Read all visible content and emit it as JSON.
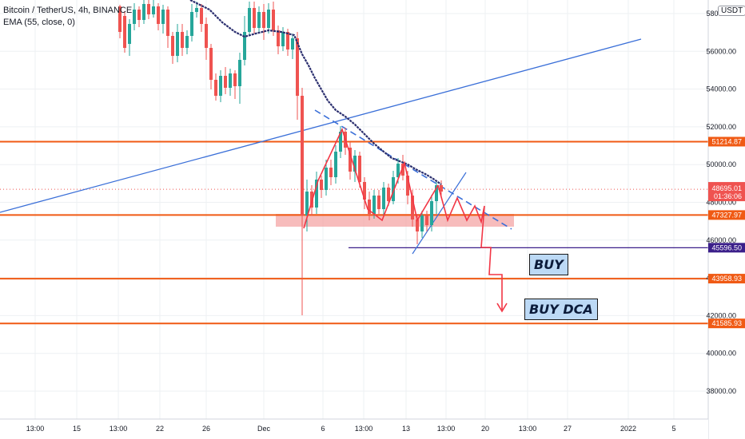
{
  "header": {
    "symbol": "Bitcoin / TetherUS, 4h, BINANCE",
    "indicator": "EMA (55, close, 0)",
    "currency": "USDT"
  },
  "colors": {
    "up": "#26a69a",
    "down": "#ef5350",
    "ema": "#2a2e6e",
    "level": "#f05a14",
    "trend": "#3a6fd8",
    "zone": "#f4a6a6",
    "price_tag_current": "#ef5350",
    "price_tag_purple": "#3b1f8a",
    "drawing_red": "#f23645",
    "grid": "#eef0f3"
  },
  "annotations": {
    "buy": "BUY",
    "buy_dca": "BUY DCA"
  },
  "chart_data": {
    "type": "candlestick",
    "symbol": "BTC/USDT",
    "timeframe": "4h",
    "ylim": [
      36600,
      58800
    ],
    "yticks": [
      38000,
      40000,
      42000,
      44000,
      46000,
      48000,
      50000,
      52000,
      54000,
      56000,
      58000
    ],
    "ytick_labels": [
      "38000.00",
      "40000.00",
      "42000.00",
      "44000.00",
      "46000.00",
      "48000.00",
      "50000.00",
      "52000.00",
      "54000.00",
      "56000.00",
      "58000.00"
    ],
    "xtick_labels": [
      "13:00",
      "15",
      "13:00",
      "22",
      "26",
      "Dec",
      "6",
      "13:00",
      "13",
      "13:00",
      "20",
      "13:00",
      "27",
      "2022",
      "5"
    ],
    "current_price": "48695.01",
    "countdown": "01:36:06",
    "levels": [
      {
        "price": 51214.87,
        "label": "51214.87",
        "kind": "resistance"
      },
      {
        "price": 47327.97,
        "label": "47327.97",
        "kind": "support"
      },
      {
        "price": 45596.5,
        "label": "45596.50",
        "kind": "purple"
      },
      {
        "price": 43958.93,
        "label": "43958.93",
        "kind": "support"
      },
      {
        "price": 41585.93,
        "label": "41585.93",
        "kind": "support"
      }
    ],
    "ema_points": [
      [
        238,
        0
      ],
      [
        262,
        12
      ],
      [
        278,
        28
      ],
      [
        294,
        40
      ],
      [
        306,
        46
      ],
      [
        320,
        42
      ],
      [
        336,
        38
      ],
      [
        352,
        40
      ],
      [
        368,
        44
      ],
      [
        378,
        68
      ],
      [
        386,
        82
      ],
      [
        394,
        98
      ],
      [
        402,
        112
      ],
      [
        410,
        126
      ],
      [
        420,
        138
      ],
      [
        432,
        146
      ],
      [
        444,
        156
      ],
      [
        456,
        168
      ],
      [
        468,
        180
      ],
      [
        480,
        190
      ],
      [
        490,
        198
      ],
      [
        500,
        202
      ],
      [
        510,
        206
      ],
      [
        520,
        212
      ],
      [
        532,
        218
      ],
      [
        542,
        224
      ],
      [
        552,
        231
      ]
    ],
    "candles": [
      [
        150,
        8,
        40,
        6,
        48
      ],
      [
        156,
        20,
        60,
        14,
        66
      ],
      [
        162,
        55,
        30,
        24,
        70
      ],
      [
        168,
        30,
        12,
        4,
        38
      ],
      [
        174,
        12,
        25,
        8,
        34
      ],
      [
        180,
        25,
        5,
        0,
        30
      ],
      [
        186,
        5,
        18,
        0,
        24
      ],
      [
        192,
        18,
        8,
        0,
        22
      ],
      [
        198,
        8,
        30,
        4,
        38
      ],
      [
        204,
        30,
        12,
        6,
        42
      ],
      [
        210,
        12,
        45,
        8,
        60
      ],
      [
        216,
        45,
        70,
        40,
        80
      ],
      [
        222,
        70,
        40,
        30,
        78
      ],
      [
        228,
        40,
        60,
        30,
        70
      ],
      [
        234,
        60,
        45,
        38,
        68
      ],
      [
        240,
        45,
        15,
        5,
        52
      ],
      [
        246,
        15,
        10,
        2,
        22
      ],
      [
        252,
        10,
        30,
        5,
        40
      ],
      [
        258,
        30,
        60,
        22,
        75
      ],
      [
        264,
        60,
        100,
        55,
        112
      ],
      [
        270,
        100,
        120,
        92,
        126
      ],
      [
        276,
        120,
        95,
        88,
        128
      ],
      [
        282,
        95,
        110,
        84,
        118
      ],
      [
        288,
        110,
        92,
        86,
        120
      ],
      [
        294,
        92,
        108,
        88,
        124
      ],
      [
        300,
        108,
        75,
        66,
        130
      ],
      [
        306,
        75,
        40,
        20,
        82
      ],
      [
        312,
        40,
        10,
        2,
        45
      ],
      [
        318,
        10,
        35,
        2,
        42
      ],
      [
        324,
        35,
        15,
        8,
        40
      ],
      [
        330,
        15,
        35,
        5,
        50
      ],
      [
        336,
        35,
        12,
        4,
        42
      ],
      [
        342,
        12,
        38,
        2,
        45
      ],
      [
        348,
        38,
        58,
        32,
        68
      ],
      [
        354,
        58,
        40,
        34,
        64
      ],
      [
        360,
        40,
        62,
        36,
        70
      ],
      [
        366,
        62,
        48,
        42,
        74
      ],
      [
        372,
        48,
        120,
        40,
        150
      ],
      [
        378,
        120,
        270,
        110,
        395
      ],
      [
        384,
        270,
        240,
        225,
        290
      ],
      [
        390,
        240,
        260,
        232,
        270
      ],
      [
        396,
        260,
        225,
        215,
        268
      ],
      [
        402,
        225,
        238,
        220,
        248
      ],
      [
        408,
        238,
        210,
        200,
        245
      ],
      [
        414,
        210,
        222,
        200,
        232
      ],
      [
        420,
        222,
        190,
        182,
        230
      ],
      [
        426,
        190,
        165,
        158,
        198
      ],
      [
        432,
        165,
        185,
        160,
        194
      ],
      [
        438,
        185,
        215,
        178,
        225
      ],
      [
        444,
        215,
        195,
        188,
        228
      ],
      [
        450,
        195,
        228,
        190,
        235
      ],
      [
        456,
        228,
        250,
        222,
        262
      ],
      [
        462,
        250,
        268,
        240,
        276
      ],
      [
        468,
        268,
        245,
        238,
        274
      ],
      [
        474,
        245,
        262,
        238,
        268
      ],
      [
        480,
        262,
        235,
        228,
        270
      ],
      [
        486,
        235,
        252,
        230,
        258
      ],
      [
        492,
        252,
        222,
        214,
        256
      ],
      [
        498,
        222,
        205,
        198,
        230
      ],
      [
        504,
        205,
        220,
        194,
        226
      ],
      [
        510,
        220,
        245,
        214,
        256
      ],
      [
        516,
        245,
        275,
        238,
        284
      ],
      [
        522,
        275,
        290,
        268,
        306
      ],
      [
        528,
        290,
        270,
        264,
        298
      ],
      [
        534,
        270,
        282,
        264,
        290
      ],
      [
        540,
        282,
        252,
        244,
        290
      ],
      [
        546,
        252,
        232,
        226,
        268
      ],
      [
        552,
        232,
        240,
        226,
        245
      ]
    ]
  }
}
